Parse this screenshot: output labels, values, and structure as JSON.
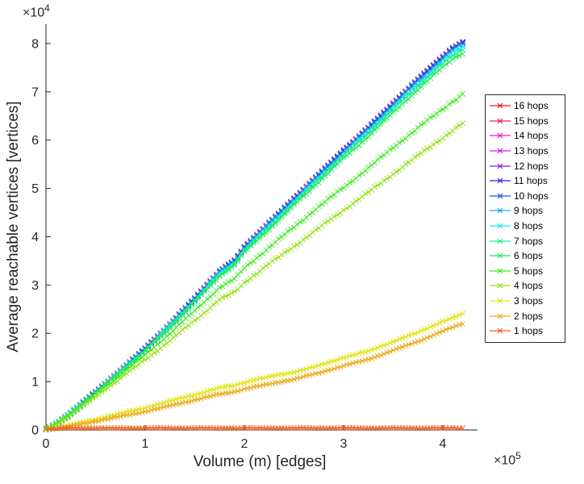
{
  "figure": {
    "background": "#ffffff"
  },
  "chart_data": {
    "type": "line",
    "title": "",
    "xlabel": "Volume (m) [edges]",
    "ylabel": "Average reachable vertices [vertices]",
    "x_axis_multiplier": {
      "base": "×10",
      "exp": "5"
    },
    "y_axis_multiplier": {
      "base": "×10",
      "exp": "4"
    },
    "xlim": [
      0,
      4.35
    ],
    "ylim": [
      0,
      8.4
    ],
    "grid": false,
    "axis_color": "#262626",
    "marker": "x",
    "legend_position": "right-outside",
    "xticks": {
      "values": [
        0,
        1,
        2,
        3,
        4
      ],
      "labels": [
        "0",
        "1",
        "2",
        "3",
        "4"
      ]
    },
    "yticks": {
      "values": [
        0,
        1,
        2,
        3,
        4,
        5,
        6,
        7,
        8
      ],
      "labels": [
        "0",
        "1",
        "2",
        "3",
        "4",
        "5",
        "6",
        "7",
        "8"
      ]
    },
    "x": [
      0,
      0.1,
      0.25,
      0.5,
      0.75,
      1.0,
      1.25,
      1.5,
      1.75,
      1.9,
      2.0,
      2.25,
      2.5,
      2.75,
      3.0,
      3.25,
      3.5,
      3.75,
      4.0,
      4.1,
      4.2
    ],
    "series": [
      {
        "name": "16 hops",
        "color": "#ed1c1c",
        "values": [
          0.02,
          0.12,
          0.35,
          0.78,
          1.22,
          1.68,
          2.18,
          2.72,
          3.28,
          3.5,
          3.78,
          4.28,
          4.78,
          5.28,
          5.78,
          6.25,
          6.75,
          7.25,
          7.72,
          7.9,
          8.02
        ]
      },
      {
        "name": "15 hops",
        "color": "#ed1c69",
        "values": [
          0.02,
          0.12,
          0.35,
          0.78,
          1.22,
          1.68,
          2.18,
          2.72,
          3.28,
          3.5,
          3.78,
          4.28,
          4.78,
          5.28,
          5.78,
          6.25,
          6.75,
          7.25,
          7.72,
          7.9,
          8.02
        ]
      },
      {
        "name": "14 hops",
        "color": "#ed1cb9",
        "values": [
          0.02,
          0.12,
          0.35,
          0.78,
          1.22,
          1.68,
          2.18,
          2.72,
          3.28,
          3.5,
          3.78,
          4.28,
          4.78,
          5.28,
          5.78,
          6.25,
          6.75,
          7.25,
          7.72,
          7.9,
          8.02
        ]
      },
      {
        "name": "13 hops",
        "color": "#d11ced",
        "values": [
          0.02,
          0.12,
          0.35,
          0.78,
          1.22,
          1.68,
          2.18,
          2.72,
          3.28,
          3.5,
          3.78,
          4.28,
          4.78,
          5.28,
          5.78,
          6.25,
          6.75,
          7.25,
          7.72,
          7.9,
          8.02
        ]
      },
      {
        "name": "12 hops",
        "color": "#851ced",
        "values": [
          0.02,
          0.12,
          0.35,
          0.78,
          1.22,
          1.68,
          2.18,
          2.72,
          3.28,
          3.5,
          3.78,
          4.28,
          4.78,
          5.28,
          5.78,
          6.25,
          6.75,
          7.25,
          7.72,
          7.9,
          8.02
        ]
      },
      {
        "name": "11 hops",
        "color": "#341ced",
        "values": [
          0.02,
          0.12,
          0.35,
          0.78,
          1.22,
          1.68,
          2.18,
          2.72,
          3.28,
          3.5,
          3.78,
          4.28,
          4.78,
          5.28,
          5.78,
          6.25,
          6.75,
          7.25,
          7.72,
          7.9,
          8.02
        ]
      },
      {
        "name": "10 hops",
        "color": "#1c54ed",
        "values": [
          0.02,
          0.12,
          0.35,
          0.78,
          1.22,
          1.68,
          2.18,
          2.72,
          3.28,
          3.5,
          3.78,
          4.28,
          4.78,
          5.28,
          5.78,
          6.25,
          6.75,
          7.25,
          7.72,
          7.9,
          8.02
        ]
      },
      {
        "name": "9 hops",
        "color": "#1ca4ed",
        "values": [
          0.02,
          0.12,
          0.35,
          0.78,
          1.21,
          1.67,
          2.17,
          2.71,
          3.26,
          3.48,
          3.76,
          4.26,
          4.76,
          5.25,
          5.75,
          6.22,
          6.72,
          7.21,
          7.68,
          7.86,
          7.98
        ]
      },
      {
        "name": "8 hops",
        "color": "#1cedea",
        "values": [
          0.02,
          0.12,
          0.35,
          0.77,
          1.21,
          1.66,
          2.16,
          2.69,
          3.24,
          3.46,
          3.74,
          4.23,
          4.73,
          5.22,
          5.72,
          6.18,
          6.68,
          7.17,
          7.64,
          7.81,
          7.93
        ]
      },
      {
        "name": "7 hops",
        "color": "#1ced99",
        "values": [
          0.02,
          0.12,
          0.34,
          0.77,
          1.2,
          1.65,
          2.14,
          2.67,
          3.22,
          3.44,
          3.71,
          4.2,
          4.69,
          5.19,
          5.68,
          6.14,
          6.63,
          7.12,
          7.58,
          7.76,
          7.88
        ]
      },
      {
        "name": "6 hops",
        "color": "#1ced49",
        "values": [
          0.02,
          0.12,
          0.34,
          0.76,
          1.19,
          1.63,
          2.12,
          2.65,
          3.19,
          3.41,
          3.68,
          4.16,
          4.65,
          5.14,
          5.62,
          6.08,
          6.57,
          7.05,
          7.51,
          7.69,
          7.8
        ]
      },
      {
        "name": "5 hops",
        "color": "#3bed1c",
        "values": [
          0.02,
          0.11,
          0.33,
          0.73,
          1.14,
          1.55,
          2.0,
          2.47,
          2.95,
          3.12,
          3.35,
          3.78,
          4.2,
          4.62,
          5.02,
          5.42,
          5.85,
          6.25,
          6.65,
          6.8,
          6.95
        ]
      },
      {
        "name": "4 hops",
        "color": "#97e316",
        "values": [
          0.02,
          0.11,
          0.31,
          0.69,
          1.07,
          1.45,
          1.85,
          2.27,
          2.7,
          2.85,
          3.05,
          3.44,
          3.8,
          4.18,
          4.55,
          4.92,
          5.3,
          5.68,
          6.05,
          6.2,
          6.35
        ]
      },
      {
        "name": "3 hops",
        "color": "#e3e515",
        "values": [
          0.01,
          0.04,
          0.1,
          0.22,
          0.34,
          0.46,
          0.6,
          0.73,
          0.87,
          0.92,
          0.99,
          1.1,
          1.2,
          1.33,
          1.5,
          1.63,
          1.83,
          2.02,
          2.25,
          2.32,
          2.4
        ]
      },
      {
        "name": "2 hops",
        "color": "#eeab1e",
        "values": [
          0.01,
          0.03,
          0.08,
          0.18,
          0.28,
          0.38,
          0.5,
          0.62,
          0.74,
          0.79,
          0.85,
          0.95,
          1.05,
          1.18,
          1.33,
          1.46,
          1.65,
          1.83,
          2.05,
          2.12,
          2.2
        ]
      },
      {
        "name": "1 hops",
        "color": "#ed6222",
        "values": [
          0.01,
          0.03,
          0.04,
          0.04,
          0.04,
          0.04,
          0.04,
          0.04,
          0.04,
          0.04,
          0.04,
          0.04,
          0.04,
          0.04,
          0.04,
          0.04,
          0.04,
          0.04,
          0.04,
          0.04,
          0.04
        ]
      }
    ]
  }
}
